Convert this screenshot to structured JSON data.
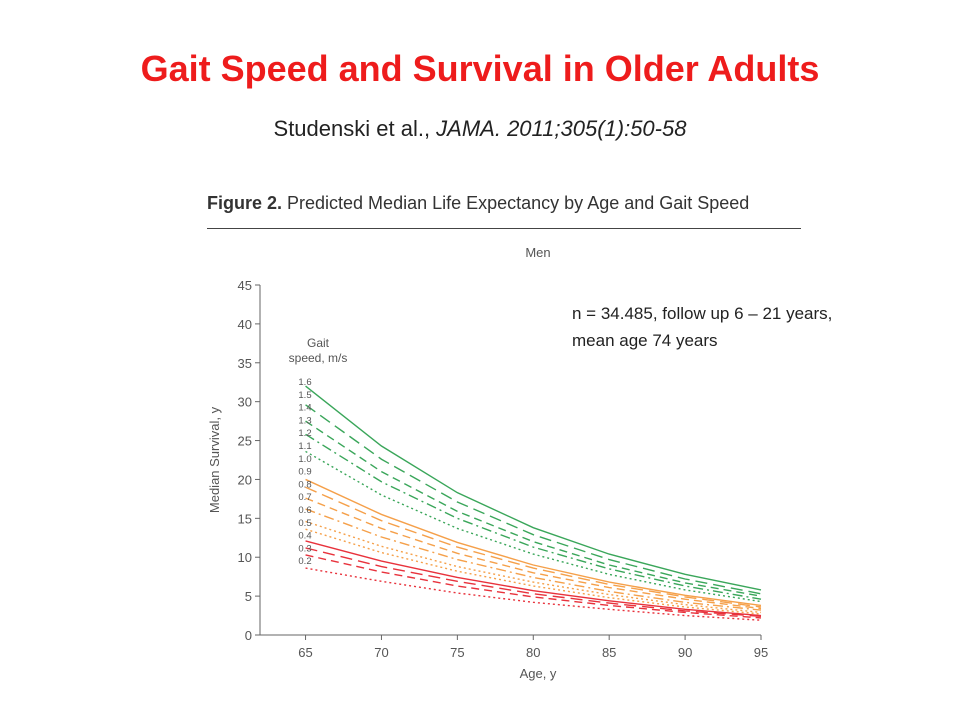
{
  "slide": {
    "title": "Gait Speed and Survival in Older Adults",
    "citation_authors": "Studenski  et al., ",
    "citation_journal": "JAMA. 2011;305(1):50-58",
    "note_line1": "n = 34.485, follow up 6 – 21 years,",
    "note_line2": "mean age 74 years"
  },
  "figure": {
    "label": "Figure 2.",
    "caption": " Predicted Median Life Expectancy by Age and Gait Speed"
  },
  "chart_data": {
    "type": "line",
    "title": "Men",
    "xlabel": "Age, y",
    "ylabel": "Median Survival, y",
    "xlim": [
      62,
      95
    ],
    "ylim": [
      0,
      45
    ],
    "xticks": [
      65,
      70,
      75,
      80,
      85,
      90,
      95
    ],
    "yticks": [
      0,
      5,
      10,
      15,
      20,
      25,
      30,
      35,
      40,
      45
    ],
    "grid": false,
    "legend": {
      "title_line1": "Gait",
      "title_line2": "speed, m/s",
      "placement": "left"
    },
    "x": [
      65,
      70,
      75,
      80,
      85,
      90,
      95
    ],
    "colors": {
      "green": "#3aa65a",
      "orange": "#f5a04a",
      "red": "#e8323c"
    },
    "series": [
      {
        "name": "1.6",
        "color": "green",
        "dash": "solid",
        "values": [
          32.0,
          24.3,
          18.3,
          13.8,
          10.4,
          7.8,
          5.8
        ]
      },
      {
        "name": "1.5",
        "color": "green",
        "dash": "longdash",
        "values": [
          29.6,
          22.6,
          17.1,
          12.9,
          9.7,
          7.2,
          5.3
        ]
      },
      {
        "name": "1.4",
        "color": "green",
        "dash": "dash",
        "values": [
          27.5,
          21.0,
          15.9,
          12.0,
          9.0,
          6.7,
          5.0
        ]
      },
      {
        "name": "1.3",
        "color": "green",
        "dash": "dashdot",
        "values": [
          25.8,
          19.7,
          15.0,
          11.3,
          8.5,
          6.3,
          4.6
        ]
      },
      {
        "name": "1.2",
        "color": "green",
        "dash": "dot",
        "values": [
          23.6,
          18.0,
          13.7,
          10.4,
          7.8,
          5.8,
          4.3
        ]
      },
      {
        "name": "1.1",
        "color": "orange",
        "dash": "solid",
        "values": [
          20.0,
          15.5,
          11.9,
          9.0,
          6.8,
          5.1,
          3.8
        ]
      },
      {
        "name": "1.0",
        "color": "orange",
        "dash": "longdash",
        "values": [
          19.0,
          14.7,
          11.3,
          8.6,
          6.5,
          4.9,
          3.6
        ]
      },
      {
        "name": "0.9",
        "color": "orange",
        "dash": "dash",
        "values": [
          17.6,
          13.7,
          10.5,
          8.0,
          6.1,
          4.6,
          3.4
        ]
      },
      {
        "name": "0.8",
        "color": "orange",
        "dash": "dashdot",
        "values": [
          16.2,
          12.6,
          9.7,
          7.4,
          5.6,
          4.2,
          3.2
        ]
      },
      {
        "name": "0.7",
        "color": "orange",
        "dash": "dot",
        "values": [
          14.6,
          11.4,
          8.8,
          6.8,
          5.2,
          3.9,
          2.9
        ]
      },
      {
        "name": "0.6",
        "color": "orange",
        "dash": "dot",
        "values": [
          13.6,
          10.6,
          8.2,
          6.3,
          4.8,
          3.6,
          2.7
        ]
      },
      {
        "name": "0.5",
        "color": "red",
        "dash": "solid",
        "values": [
          12.1,
          9.5,
          7.4,
          5.7,
          4.4,
          3.3,
          2.5
        ]
      },
      {
        "name": "0.4",
        "color": "red",
        "dash": "longdash",
        "values": [
          11.2,
          8.8,
          6.9,
          5.3,
          4.1,
          3.1,
          2.4
        ]
      },
      {
        "name": "0.3",
        "color": "red",
        "dash": "dash",
        "values": [
          10.3,
          8.1,
          6.3,
          4.9,
          3.8,
          2.9,
          2.2
        ]
      },
      {
        "name": "0.2",
        "color": "red",
        "dash": "dot",
        "values": [
          8.6,
          6.9,
          5.4,
          4.2,
          3.3,
          2.5,
          1.9
        ]
      }
    ]
  }
}
